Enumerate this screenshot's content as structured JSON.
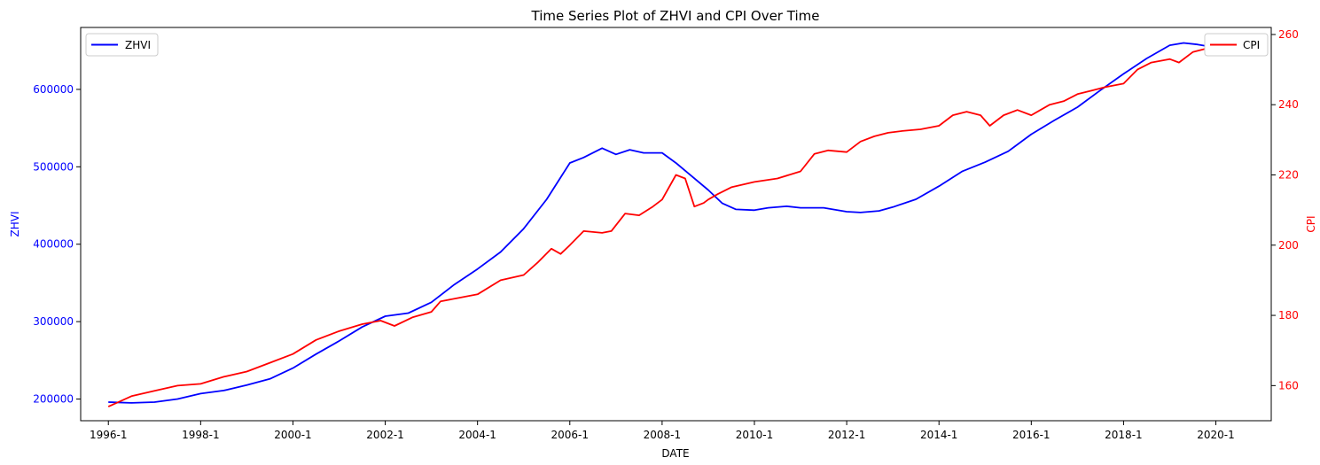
{
  "chart_data": {
    "type": "line",
    "title": "Time Series Plot of ZHVI and CPI Over Time",
    "xlabel": "DATE",
    "x_tick_labels": [
      "1996-1",
      "1998-1",
      "2000-1",
      "2002-1",
      "2004-1",
      "2006-1",
      "2008-1",
      "2010-1",
      "2012-1",
      "2014-1",
      "2016-1",
      "2018-1",
      "2020-1"
    ],
    "x_range": [
      1995.4,
      2021.2
    ],
    "left_axis": {
      "label": "ZHVI",
      "color": "#0000ff",
      "range": [
        172000,
        680000
      ],
      "ticks": [
        200000,
        300000,
        400000,
        500000,
        600000
      ],
      "tick_labels": [
        "200000",
        "300000",
        "400000",
        "500000",
        "600000"
      ]
    },
    "right_axis": {
      "label": "CPI",
      "color": "#ff0000",
      "range": [
        150,
        262
      ],
      "ticks": [
        160,
        180,
        200,
        220,
        240,
        260
      ],
      "tick_labels": [
        "160",
        "180",
        "200",
        "220",
        "240",
        "260"
      ]
    },
    "series": [
      {
        "name": "ZHVI",
        "axis": "left",
        "color": "#0000ff",
        "x": [
          1996.0,
          1996.5,
          1997.0,
          1997.5,
          1998.0,
          1998.5,
          1999.0,
          1999.5,
          2000.0,
          2000.5,
          2001.0,
          2001.5,
          2002.0,
          2002.5,
          2003.0,
          2003.5,
          2004.0,
          2004.5,
          2005.0,
          2005.5,
          2006.0,
          2006.3,
          2006.7,
          2007.0,
          2007.3,
          2007.6,
          2008.0,
          2008.3,
          2008.6,
          2009.0,
          2009.3,
          2009.6,
          2010.0,
          2010.3,
          2010.7,
          2011.0,
          2011.5,
          2012.0,
          2012.3,
          2012.7,
          2013.0,
          2013.5,
          2014.0,
          2014.5,
          2015.0,
          2015.5,
          2016.0,
          2016.5,
          2017.0,
          2017.5,
          2018.0,
          2018.5,
          2019.0,
          2019.3,
          2019.6,
          2019.9,
          2020.2
        ],
        "values": [
          196000,
          195000,
          196000,
          200000,
          207000,
          211000,
          218000,
          226000,
          240000,
          258000,
          275000,
          293000,
          307000,
          311000,
          325000,
          348000,
          368000,
          390000,
          420000,
          458000,
          505000,
          512000,
          524000,
          516000,
          522000,
          518000,
          518000,
          505000,
          490000,
          470000,
          453000,
          445000,
          444000,
          447000,
          449000,
          447000,
          447000,
          442000,
          441000,
          443000,
          448000,
          458000,
          475000,
          494000,
          506000,
          520000,
          542000,
          560000,
          577000,
          599000,
          620000,
          640000,
          657000,
          660000,
          658000,
          655000,
          652000
        ]
      },
      {
        "name": "CPI",
        "axis": "right",
        "color": "#ff0000",
        "x": [
          1996.0,
          1996.5,
          1997.0,
          1997.5,
          1998.0,
          1998.5,
          1999.0,
          1999.5,
          2000.0,
          2000.5,
          2001.0,
          2001.5,
          2001.9,
          2002.2,
          2002.6,
          2003.0,
          2003.2,
          2003.6,
          2004.0,
          2004.5,
          2005.0,
          2005.3,
          2005.6,
          2005.8,
          2006.0,
          2006.3,
          2006.7,
          2006.9,
          2007.2,
          2007.5,
          2007.8,
          2008.0,
          2008.3,
          2008.5,
          2008.7,
          2008.9,
          2009.0,
          2009.2,
          2009.5,
          2010.0,
          2010.5,
          2011.0,
          2011.3,
          2011.6,
          2012.0,
          2012.3,
          2012.6,
          2012.9,
          2013.2,
          2013.6,
          2014.0,
          2014.3,
          2014.6,
          2014.9,
          2015.1,
          2015.4,
          2015.7,
          2016.0,
          2016.4,
          2016.7,
          2017.0,
          2017.3,
          2017.6,
          2018.0,
          2018.3,
          2018.6,
          2019.0,
          2019.2,
          2019.5,
          2019.8,
          2020.1
        ],
        "values": [
          154,
          157,
          158.5,
          160,
          160.5,
          162.5,
          164,
          166.5,
          169,
          173,
          175.5,
          177.5,
          178.5,
          177,
          179.5,
          181,
          184,
          185,
          186,
          190,
          191.5,
          195,
          199,
          197.5,
          200,
          204,
          203.5,
          204,
          209,
          208.5,
          211,
          213,
          220,
          219,
          211,
          212,
          213,
          214.5,
          216.5,
          218,
          219,
          221,
          226,
          227,
          226.5,
          229.5,
          231,
          232,
          232.5,
          233,
          234,
          237,
          238,
          237,
          234,
          237,
          238.5,
          237,
          240,
          241,
          243,
          244,
          245,
          246,
          250,
          252,
          253,
          252,
          255,
          256,
          258
        ]
      }
    ],
    "legend": [
      {
        "label": "ZHVI",
        "placement": "upper-left",
        "color": "#0000ff"
      },
      {
        "label": "CPI",
        "placement": "upper-right",
        "color": "#ff0000"
      }
    ],
    "grid": false
  }
}
